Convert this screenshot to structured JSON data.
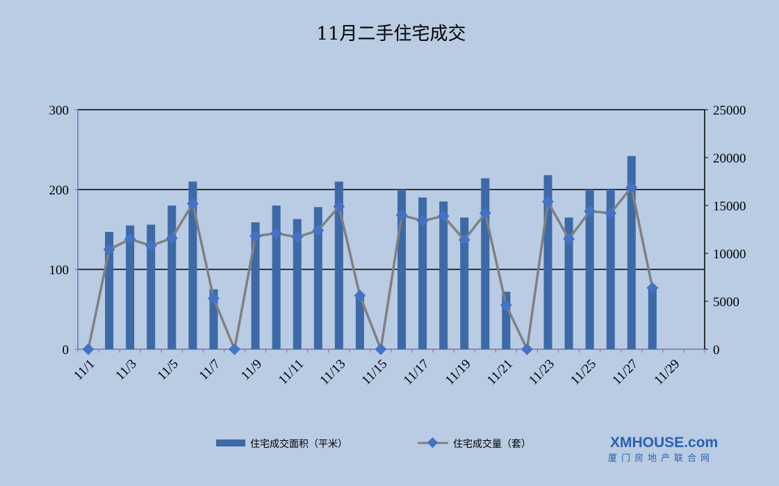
{
  "chart_data": {
    "type": "bar",
    "title": "11月二手住宅成交",
    "categories": [
      "11/1",
      "11/2",
      "11/3",
      "11/4",
      "11/5",
      "11/6",
      "11/7",
      "11/8",
      "11/9",
      "11/10",
      "11/11",
      "11/12",
      "11/13",
      "11/14",
      "11/15",
      "11/16",
      "11/17",
      "11/18",
      "11/19",
      "11/20",
      "11/21",
      "11/22",
      "11/23",
      "11/24",
      "11/25",
      "11/26",
      "11/27",
      "11/28",
      "11/29",
      "11/30"
    ],
    "x_tick_labels": [
      "11/1",
      "11/3",
      "11/5",
      "11/7",
      "11/9",
      "11/11",
      "11/13",
      "11/15",
      "11/17",
      "11/19",
      "11/21",
      "11/23",
      "11/25",
      "11/27",
      "11/29"
    ],
    "y_left": {
      "ylim": [
        0,
        300
      ],
      "ticks": [
        "0",
        "100",
        "200",
        "300"
      ]
    },
    "y_right": {
      "ylim": [
        0,
        25000
      ],
      "ticks": [
        "0",
        "5000",
        "10000",
        "15000",
        "20000",
        "25000"
      ]
    },
    "grid": true,
    "legend_position": "bottom",
    "series": [
      {
        "name": "住宅成交面积（平米）",
        "type": "bar",
        "axis": "left",
        "color": "#3d6aa6",
        "values": [
          0,
          147,
          155,
          156,
          180,
          210,
          75,
          0,
          159,
          180,
          163,
          178,
          210,
          68,
          0,
          200,
          190,
          185,
          165,
          214,
          72,
          0,
          218,
          165,
          200,
          200,
          242,
          78,
          0,
          0
        ]
      },
      {
        "name": "住宅成交量（套）",
        "type": "line",
        "axis": "right",
        "color": "#808080",
        "marker_color": "#4472c4",
        "values": [
          0,
          10400,
          11500,
          10800,
          11600,
          15200,
          5300,
          0,
          11800,
          12100,
          11700,
          12400,
          14900,
          5600,
          0,
          14000,
          13400,
          13900,
          11400,
          14200,
          4600,
          0,
          15400,
          11500,
          14400,
          14200,
          16900,
          6400,
          null,
          null
        ]
      }
    ]
  },
  "logo": {
    "main": "XMHOUSE.com",
    "sub": "厦门房地产联合网"
  }
}
